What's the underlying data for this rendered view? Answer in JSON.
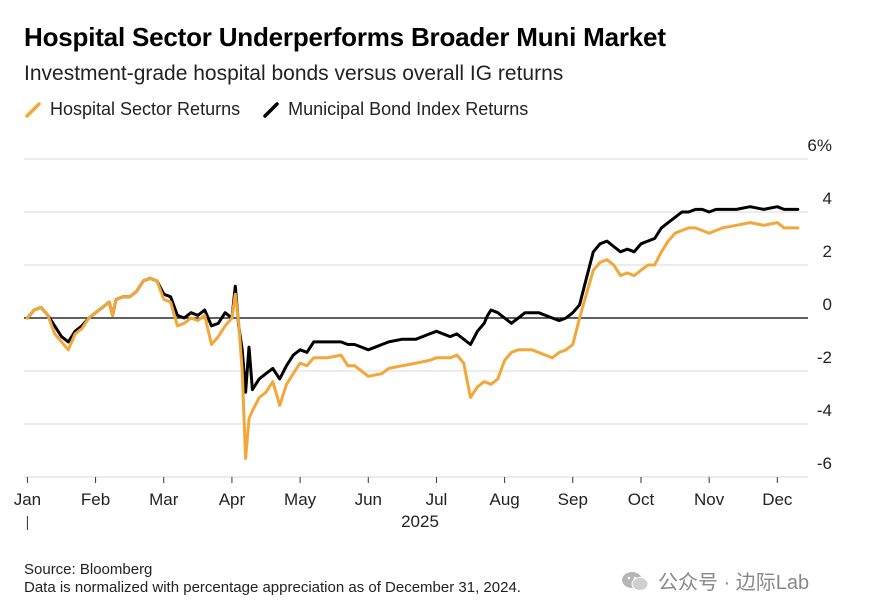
{
  "chart_data": {
    "type": "line",
    "title": "Hospital Sector Underperforms Broader Muni Market",
    "subtitle": "Investment-grade hospital bonds versus overall IG returns",
    "xlabel": "2025",
    "ylabel": "",
    "ylim": [
      -6,
      6
    ],
    "y_ticks": [
      -6,
      -4,
      -2,
      0,
      2,
      4,
      6
    ],
    "y_tick_labels": [
      "-6",
      "-4",
      "-2",
      "0",
      "2",
      "4",
      "6%"
    ],
    "x_ticks": [
      0,
      1,
      2,
      3,
      4,
      5,
      6,
      7,
      8,
      9,
      10,
      11
    ],
    "x_tick_labels": [
      "Jan",
      "Feb",
      "Mar",
      "Apr",
      "May",
      "Jun",
      "Jul",
      "Aug",
      "Sep",
      "Oct",
      "Nov",
      "Dec"
    ],
    "xlim": [
      -0.05,
      11.45
    ],
    "series": [
      {
        "name": "Municipal Bond Index Returns",
        "color": "#000000",
        "points": [
          [
            0.0,
            0.0
          ],
          [
            0.1,
            0.3
          ],
          [
            0.2,
            0.4
          ],
          [
            0.3,
            0.1
          ],
          [
            0.4,
            -0.3
          ],
          [
            0.5,
            -0.7
          ],
          [
            0.6,
            -0.9
          ],
          [
            0.7,
            -0.5
          ],
          [
            0.8,
            -0.3
          ],
          [
            0.9,
            0.0
          ],
          [
            1.0,
            0.2
          ],
          [
            1.1,
            0.4
          ],
          [
            1.2,
            0.6
          ],
          [
            1.25,
            0.1
          ],
          [
            1.3,
            0.7
          ],
          [
            1.4,
            0.8
          ],
          [
            1.5,
            0.8
          ],
          [
            1.6,
            1.0
          ],
          [
            1.7,
            1.4
          ],
          [
            1.8,
            1.5
          ],
          [
            1.9,
            1.4
          ],
          [
            2.0,
            0.9
          ],
          [
            2.1,
            0.8
          ],
          [
            2.2,
            0.1
          ],
          [
            2.3,
            0.0
          ],
          [
            2.4,
            0.2
          ],
          [
            2.5,
            0.1
          ],
          [
            2.6,
            0.3
          ],
          [
            2.7,
            -0.3
          ],
          [
            2.8,
            -0.2
          ],
          [
            2.9,
            0.2
          ],
          [
            3.0,
            0.0
          ],
          [
            3.05,
            1.2
          ],
          [
            3.1,
            -0.3
          ],
          [
            3.15,
            -1.2
          ],
          [
            3.2,
            -2.8
          ],
          [
            3.25,
            -1.1
          ],
          [
            3.3,
            -2.7
          ],
          [
            3.4,
            -2.3
          ],
          [
            3.5,
            -2.1
          ],
          [
            3.6,
            -1.9
          ],
          [
            3.7,
            -2.3
          ],
          [
            3.8,
            -1.8
          ],
          [
            3.9,
            -1.4
          ],
          [
            4.0,
            -1.2
          ],
          [
            4.1,
            -1.3
          ],
          [
            4.2,
            -0.9
          ],
          [
            4.4,
            -0.9
          ],
          [
            4.6,
            -0.9
          ],
          [
            4.7,
            -1.0
          ],
          [
            4.8,
            -1.0
          ],
          [
            4.9,
            -1.1
          ],
          [
            5.0,
            -1.2
          ],
          [
            5.2,
            -1.0
          ],
          [
            5.3,
            -0.9
          ],
          [
            5.5,
            -0.8
          ],
          [
            5.7,
            -0.8
          ],
          [
            5.9,
            -0.6
          ],
          [
            6.0,
            -0.5
          ],
          [
            6.2,
            -0.7
          ],
          [
            6.3,
            -0.6
          ],
          [
            6.4,
            -0.8
          ],
          [
            6.5,
            -1.0
          ],
          [
            6.6,
            -0.5
          ],
          [
            6.7,
            -0.2
          ],
          [
            6.75,
            0.1
          ],
          [
            6.8,
            0.3
          ],
          [
            6.9,
            0.2
          ],
          [
            7.0,
            0.0
          ],
          [
            7.1,
            -0.2
          ],
          [
            7.2,
            0.0
          ],
          [
            7.3,
            0.2
          ],
          [
            7.5,
            0.2
          ],
          [
            7.6,
            0.1
          ],
          [
            7.7,
            0.0
          ],
          [
            7.8,
            -0.1
          ],
          [
            7.9,
            0.0
          ],
          [
            8.0,
            0.2
          ],
          [
            8.1,
            0.5
          ],
          [
            8.2,
            1.5
          ],
          [
            8.3,
            2.5
          ],
          [
            8.4,
            2.8
          ],
          [
            8.5,
            2.9
          ],
          [
            8.6,
            2.7
          ],
          [
            8.7,
            2.5
          ],
          [
            8.8,
            2.6
          ],
          [
            8.9,
            2.5
          ],
          [
            9.0,
            2.8
          ],
          [
            9.1,
            2.9
          ],
          [
            9.2,
            3.0
          ],
          [
            9.3,
            3.4
          ],
          [
            9.4,
            3.6
          ],
          [
            9.5,
            3.8
          ],
          [
            9.6,
            4.0
          ],
          [
            9.7,
            4.0
          ],
          [
            9.8,
            4.1
          ],
          [
            9.9,
            4.1
          ],
          [
            10.0,
            4.0
          ],
          [
            10.1,
            4.1
          ],
          [
            10.2,
            4.1
          ],
          [
            10.4,
            4.1
          ],
          [
            10.6,
            4.2
          ],
          [
            10.8,
            4.1
          ],
          [
            11.0,
            4.2
          ],
          [
            11.1,
            4.1
          ],
          [
            11.2,
            4.1
          ],
          [
            11.3,
            4.1
          ]
        ]
      },
      {
        "name": "Hospital Sector Returns",
        "color": "#f2a73b",
        "points": [
          [
            0.0,
            0.0
          ],
          [
            0.1,
            0.3
          ],
          [
            0.2,
            0.4
          ],
          [
            0.3,
            0.1
          ],
          [
            0.4,
            -0.6
          ],
          [
            0.5,
            -0.9
          ],
          [
            0.6,
            -1.2
          ],
          [
            0.7,
            -0.6
          ],
          [
            0.8,
            -0.4
          ],
          [
            0.9,
            0.0
          ],
          [
            1.0,
            0.2
          ],
          [
            1.1,
            0.4
          ],
          [
            1.2,
            0.6
          ],
          [
            1.25,
            0.1
          ],
          [
            1.3,
            0.7
          ],
          [
            1.4,
            0.8
          ],
          [
            1.5,
            0.8
          ],
          [
            1.6,
            1.0
          ],
          [
            1.7,
            1.4
          ],
          [
            1.8,
            1.5
          ],
          [
            1.9,
            1.4
          ],
          [
            2.0,
            0.7
          ],
          [
            2.1,
            0.6
          ],
          [
            2.2,
            -0.3
          ],
          [
            2.3,
            -0.2
          ],
          [
            2.4,
            0.0
          ],
          [
            2.5,
            -0.1
          ],
          [
            2.6,
            0.1
          ],
          [
            2.7,
            -1.0
          ],
          [
            2.8,
            -0.7
          ],
          [
            2.9,
            -0.3
          ],
          [
            3.0,
            0.0
          ],
          [
            3.05,
            0.9
          ],
          [
            3.1,
            -0.2
          ],
          [
            3.15,
            -2.0
          ],
          [
            3.2,
            -5.3
          ],
          [
            3.25,
            -3.8
          ],
          [
            3.3,
            -3.5
          ],
          [
            3.4,
            -3.0
          ],
          [
            3.5,
            -2.8
          ],
          [
            3.6,
            -2.4
          ],
          [
            3.7,
            -3.3
          ],
          [
            3.8,
            -2.5
          ],
          [
            3.9,
            -2.1
          ],
          [
            4.0,
            -1.7
          ],
          [
            4.1,
            -1.8
          ],
          [
            4.2,
            -1.5
          ],
          [
            4.4,
            -1.5
          ],
          [
            4.6,
            -1.4
          ],
          [
            4.7,
            -1.8
          ],
          [
            4.8,
            -1.8
          ],
          [
            4.9,
            -2.0
          ],
          [
            5.0,
            -2.2
          ],
          [
            5.2,
            -2.1
          ],
          [
            5.3,
            -1.9
          ],
          [
            5.5,
            -1.8
          ],
          [
            5.7,
            -1.7
          ],
          [
            5.9,
            -1.6
          ],
          [
            6.0,
            -1.5
          ],
          [
            6.2,
            -1.5
          ],
          [
            6.3,
            -1.4
          ],
          [
            6.4,
            -1.7
          ],
          [
            6.5,
            -3.0
          ],
          [
            6.6,
            -2.6
          ],
          [
            6.7,
            -2.4
          ],
          [
            6.8,
            -2.5
          ],
          [
            6.9,
            -2.3
          ],
          [
            7.0,
            -1.6
          ],
          [
            7.1,
            -1.3
          ],
          [
            7.2,
            -1.2
          ],
          [
            7.4,
            -1.2
          ],
          [
            7.6,
            -1.4
          ],
          [
            7.7,
            -1.5
          ],
          [
            7.8,
            -1.3
          ],
          [
            7.9,
            -1.2
          ],
          [
            8.0,
            -1.0
          ],
          [
            8.1,
            0.0
          ],
          [
            8.2,
            0.9
          ],
          [
            8.3,
            1.8
          ],
          [
            8.4,
            2.1
          ],
          [
            8.5,
            2.2
          ],
          [
            8.6,
            2.0
          ],
          [
            8.7,
            1.6
          ],
          [
            8.8,
            1.7
          ],
          [
            8.9,
            1.6
          ],
          [
            9.0,
            1.8
          ],
          [
            9.1,
            2.0
          ],
          [
            9.2,
            2.0
          ],
          [
            9.3,
            2.5
          ],
          [
            9.4,
            2.9
          ],
          [
            9.5,
            3.2
          ],
          [
            9.6,
            3.3
          ],
          [
            9.7,
            3.4
          ],
          [
            9.8,
            3.4
          ],
          [
            9.9,
            3.3
          ],
          [
            10.0,
            3.2
          ],
          [
            10.1,
            3.3
          ],
          [
            10.2,
            3.4
          ],
          [
            10.4,
            3.5
          ],
          [
            10.6,
            3.6
          ],
          [
            10.8,
            3.5
          ],
          [
            11.0,
            3.6
          ],
          [
            11.1,
            3.4
          ],
          [
            11.2,
            3.4
          ],
          [
            11.3,
            3.4
          ]
        ]
      }
    ],
    "legend_position": "top-left"
  },
  "footer": {
    "source": "Source: Bloomberg",
    "note": "Data is normalized with percentage appreciation as of December 31, 2024."
  },
  "watermark": {
    "text": "公众号 · 边际Lab"
  },
  "colors": {
    "hospital": "#f2a73b",
    "muni": "#000000",
    "grid": "#d9d9d9"
  }
}
